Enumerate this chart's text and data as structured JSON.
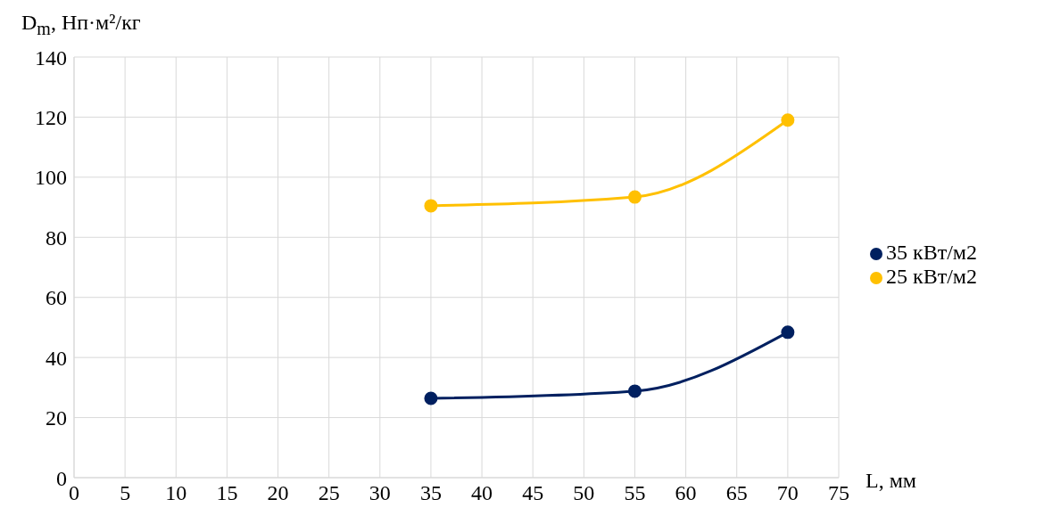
{
  "chart_data": {
    "type": "line",
    "xlabel": "L, мм",
    "ylabel": "D$_{m}$, Нп·м²/кг",
    "x": [
      35,
      55,
      70
    ],
    "series": [
      {
        "name": "35 кВт/м2",
        "color": "#002060",
        "values": [
          26.4,
          28.8,
          48.4
        ]
      },
      {
        "name": "25 кВт/м2",
        "color": "#ffc000",
        "values": [
          90.5,
          93.4,
          119
        ]
      }
    ],
    "xlim": [
      0,
      75
    ],
    "xticks": [
      0,
      5,
      10,
      15,
      20,
      25,
      30,
      35,
      40,
      45,
      50,
      55,
      60,
      65,
      70,
      75
    ],
    "ylim": [
      0,
      140
    ],
    "yticks": [
      0,
      20,
      40,
      60,
      80,
      100,
      120,
      140
    ],
    "grid": true,
    "legend": "right",
    "marker": "circle",
    "line_style": "solid"
  }
}
